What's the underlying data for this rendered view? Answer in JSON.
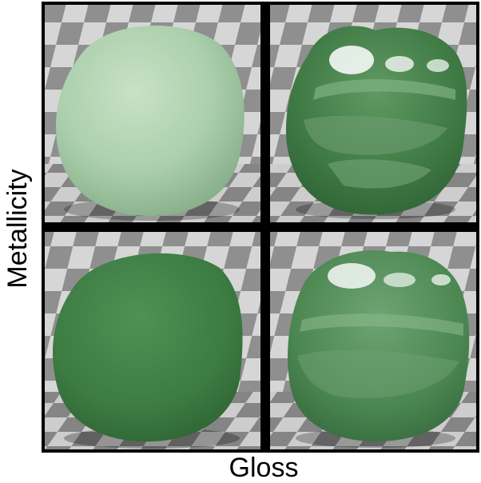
{
  "axes": {
    "y_label": "Metallicity",
    "x_label": "Gloss"
  },
  "grid": {
    "rows": 2,
    "cols": 2,
    "cells": [
      {
        "name": "top-left",
        "metallicity": "high",
        "gloss": "low",
        "color": "#a9cdaa"
      },
      {
        "name": "top-right",
        "metallicity": "high",
        "gloss": "high",
        "color": "#3f7a45"
      },
      {
        "name": "bottom-left",
        "metallicity": "low",
        "gloss": "low",
        "color": "#3f7f45"
      },
      {
        "name": "bottom-right",
        "metallicity": "low",
        "gloss": "high",
        "color": "#4d8a52"
      }
    ]
  },
  "colors": {
    "frame": "#000000",
    "checker_light": "#d8d8d8",
    "checker_dark": "#8e8e8e",
    "floor_light": "#cfcfcf",
    "floor_dark": "#858585"
  }
}
